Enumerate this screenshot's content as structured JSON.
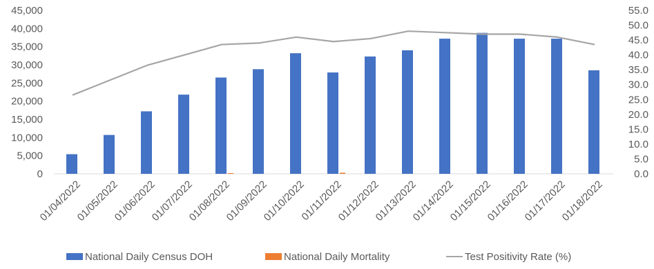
{
  "chart_data": {
    "type": "bar",
    "categories": [
      "01/04/2022",
      "01/05/2022",
      "01/06/2022",
      "01/07/2022",
      "01/08/2022",
      "01/09/2022",
      "01/10/2022",
      "01/11/2022",
      "01/12/2022",
      "01/13/2022",
      "01/14/2022",
      "01/15/2022",
      "01/16/2022",
      "01/17/2022",
      "01/18/2022"
    ],
    "series": [
      {
        "name": "National Daily Census DOH",
        "type": "bar",
        "axis": "left",
        "color": "#4472C4",
        "values": [
          5400,
          10700,
          17200,
          21800,
          26500,
          28800,
          33200,
          27900,
          32300,
          34000,
          37200,
          38800,
          37200,
          37200,
          28500
        ]
      },
      {
        "name": "National Daily Mortality",
        "type": "bar",
        "axis": "left",
        "color": "#ED7D31",
        "values": [
          0,
          0,
          0,
          0,
          200,
          0,
          0,
          300,
          0,
          0,
          0,
          0,
          0,
          0,
          0
        ]
      },
      {
        "name": "Test Positivity Rate (%)",
        "type": "line",
        "axis": "right",
        "color": "#A5A5A5",
        "values": [
          26.5,
          31.5,
          36.5,
          40.0,
          43.5,
          44.0,
          46.0,
          44.5,
          45.5,
          48.0,
          47.5,
          47.0,
          47.0,
          46.0,
          43.5
        ]
      }
    ],
    "ylim": [
      0,
      45000
    ],
    "yticks": [
      "0",
      "5,000",
      "10,000",
      "15,000",
      "20,000",
      "25,000",
      "30,000",
      "35,000",
      "40,000",
      "45,000"
    ],
    "y2lim": [
      0,
      55
    ],
    "y2ticks": [
      "0.0",
      "5.0",
      "10.0",
      "15.0",
      "20.0",
      "25.0",
      "30.0",
      "35.0",
      "40.0",
      "45.0",
      "50.0",
      "55.0"
    ],
    "grid": false,
    "legend": "bottom"
  }
}
